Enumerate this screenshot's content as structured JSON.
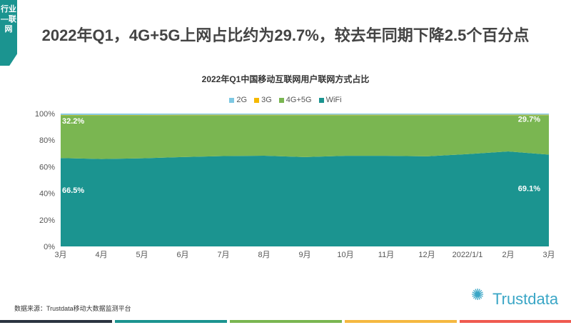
{
  "tag": "行业—联网",
  "headline": "2022年Q1，4G+5G上网占比约为29.7%，较去年同期下降2.5个百分点",
  "source": "数据来源：Trustdata移动大数据监测平台",
  "logo": "Trustdata",
  "colors": {
    "2G": "#7ec8e3",
    "3G": "#f5b800",
    "4G+5G": "#7ab651",
    "WiFi": "#1b9490"
  },
  "chart_data": {
    "type": "area",
    "stacked": true,
    "title": "2022年Q1中国移动互联网用户联网方式占比",
    "categories": [
      "3月",
      "4月",
      "5月",
      "6月",
      "7月",
      "8月",
      "9月",
      "10月",
      "11月",
      "12月",
      "2022/1/1",
      "2月",
      "3月"
    ],
    "series": [
      {
        "name": "WiFi",
        "values": [
          66.5,
          65.8,
          66.3,
          67.3,
          68.0,
          68.3,
          67.3,
          68.2,
          68.2,
          67.8,
          69.5,
          71.5,
          69.1
        ]
      },
      {
        "name": "4G+5G",
        "values": [
          32.2,
          32.9,
          32.4,
          31.5,
          30.8,
          30.5,
          31.5,
          30.6,
          30.6,
          31.0,
          29.3,
          27.3,
          29.7
        ]
      },
      {
        "name": "3G",
        "values": [
          0.3,
          0.3,
          0.3,
          0.3,
          0.3,
          0.3,
          0.3,
          0.3,
          0.3,
          0.3,
          0.3,
          0.3,
          0.3
        ]
      },
      {
        "name": "2G",
        "values": [
          1.0,
          1.0,
          1.0,
          0.9,
          0.9,
          0.9,
          0.9,
          0.9,
          0.9,
          0.9,
          0.9,
          0.9,
          0.9
        ]
      }
    ],
    "legend": [
      "2G",
      "3G",
      "4G+5G",
      "WiFi"
    ],
    "legend_position": "top",
    "yticks": [
      "0%",
      "20%",
      "40%",
      "60%",
      "80%",
      "100%"
    ],
    "ylim": [
      0,
      100
    ],
    "data_labels": [
      {
        "series": "4G+5G",
        "index": 0,
        "text": "32.2%"
      },
      {
        "series": "WiFi",
        "index": 0,
        "text": "66.5%"
      },
      {
        "series": "4G+5G",
        "index": 12,
        "text": "29.7%"
      },
      {
        "series": "WiFi",
        "index": 12,
        "text": "69.1%"
      }
    ]
  }
}
